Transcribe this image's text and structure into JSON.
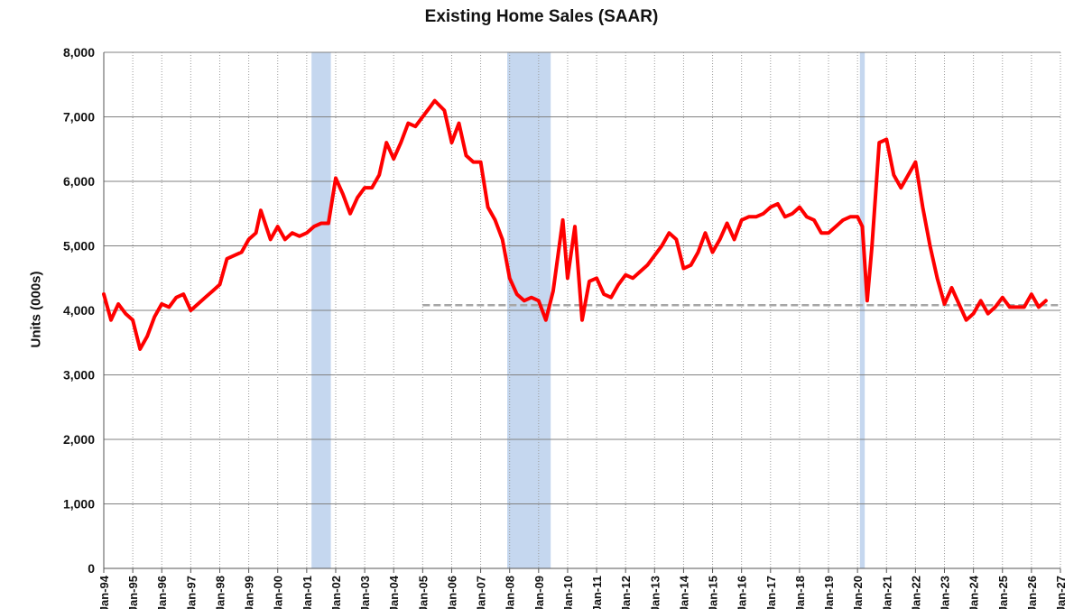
{
  "chart_data": {
    "type": "line",
    "title": "Existing Home Sales (SAAR)",
    "ylabel": "Units (000s)",
    "xlabel": "",
    "ylim": [
      0,
      8000
    ],
    "xlim": [
      "Jan-94",
      "Jan-27"
    ],
    "grid": true,
    "y_ticks": [
      "0",
      "1,000",
      "2,000",
      "3,000",
      "4,000",
      "5,000",
      "6,000",
      "7,000",
      "8,000"
    ],
    "x_ticks": [
      "Jan-94",
      "Jan-95",
      "Jan-96",
      "Jan-97",
      "Jan-98",
      "Jan-99",
      "Jan-00",
      "Jan-01",
      "Jan-02",
      "Jan-03",
      "Jan-04",
      "Jan-05",
      "Jan-06",
      "Jan-07",
      "Jan-08",
      "Jan-09",
      "Jan-10",
      "Jan-11",
      "Jan-12",
      "Jan-13",
      "Jan-14",
      "Jan-15",
      "Jan-16",
      "Jan-17",
      "Jan-18",
      "Jan-19",
      "Jan-20",
      "Jan-21",
      "Jan-22",
      "Jan-23",
      "Jan-24",
      "Jan-25",
      "Jan-26",
      "Jan-27"
    ],
    "recession_bands": [
      {
        "start": "Mar-01",
        "end": "Nov-01"
      },
      {
        "start": "Dec-07",
        "end": "Jun-09"
      },
      {
        "start": "Feb-20",
        "end": "Apr-20"
      }
    ],
    "reference_line": {
      "value": 4080,
      "start": "Jan-05",
      "end": "Jan-27",
      "style": "dashed"
    },
    "colors": {
      "series": "#ff0000",
      "recession": "#c5d7ef",
      "reference": "#a6a6a6",
      "grid": "#808080"
    },
    "series": [
      {
        "x": [
          "Jan-94",
          "Apr-94",
          "Jul-94",
          "Oct-94",
          "Jan-95",
          "Apr-95",
          "Jul-95",
          "Oct-95",
          "Jan-96",
          "Apr-96",
          "Jul-96",
          "Oct-96",
          "Jan-97",
          "Apr-97",
          "Jul-97",
          "Oct-97",
          "Jan-98",
          "Apr-98",
          "Jul-98",
          "Oct-98",
          "Jan-99",
          "Apr-99",
          "Jun-99",
          "Oct-99",
          "Jan-00",
          "Apr-00",
          "Jul-00",
          "Oct-00",
          "Jan-01",
          "Apr-01",
          "Jul-01",
          "Oct-01",
          "Jan-02",
          "Apr-02",
          "Jul-02",
          "Oct-02",
          "Jan-03",
          "Apr-03",
          "Jul-03",
          "Oct-03",
          "Jan-04",
          "Apr-04",
          "Jul-04",
          "Oct-04",
          "Jan-05",
          "Apr-05",
          "Jun-05",
          "Oct-05",
          "Jan-06",
          "Apr-06",
          "Jul-06",
          "Oct-06",
          "Jan-07",
          "Apr-07",
          "Jul-07",
          "Oct-07",
          "Jan-08",
          "Apr-08",
          "Jul-08",
          "Oct-08",
          "Jan-09",
          "Apr-09",
          "Jul-09",
          "Nov-09",
          "Jan-10",
          "Apr-10",
          "Jul-10",
          "Oct-10",
          "Jan-11",
          "Apr-11",
          "Jul-11",
          "Oct-11",
          "Jan-12",
          "Apr-12",
          "Jul-12",
          "Oct-12",
          "Jan-13",
          "Apr-13",
          "Jul-13",
          "Oct-13",
          "Jan-14",
          "Apr-14",
          "Jul-14",
          "Oct-14",
          "Jan-15",
          "Apr-15",
          "Jul-15",
          "Oct-15",
          "Jan-16",
          "Apr-16",
          "Jul-16",
          "Oct-16",
          "Jan-17",
          "Apr-17",
          "Jul-17",
          "Oct-17",
          "Jan-18",
          "Apr-18",
          "Jul-18",
          "Oct-18",
          "Jan-19",
          "Apr-19",
          "Jul-19",
          "Oct-19",
          "Jan-20",
          "Mar-20",
          "May-20",
          "Jul-20",
          "Oct-20",
          "Jan-21",
          "Apr-21",
          "Jul-21",
          "Oct-21",
          "Jan-22",
          "Apr-22",
          "Jul-22",
          "Oct-22",
          "Jan-23",
          "Apr-23",
          "Jul-23",
          "Oct-23",
          "Jan-24",
          "Apr-24",
          "Jul-24",
          "Oct-24",
          "Jan-25",
          "Apr-25",
          "Jul-25",
          "Oct-25",
          "Jan-26",
          "Apr-26",
          "Jul-26"
        ],
        "y": [
          4250,
          3850,
          4100,
          3950,
          3850,
          3400,
          3600,
          3900,
          4100,
          4050,
          4200,
          4250,
          4000,
          4100,
          4200,
          4300,
          4400,
          4800,
          4850,
          4900,
          5100,
          5200,
          5550,
          5100,
          5300,
          5100,
          5200,
          5150,
          5200,
          5300,
          5350,
          5350,
          6050,
          5800,
          5500,
          5750,
          5900,
          5900,
          6100,
          6600,
          6350,
          6600,
          6900,
          6850,
          7000,
          7150,
          7250,
          7100,
          6600,
          6900,
          6400,
          6300,
          6300,
          5600,
          5400,
          5100,
          4500,
          4250,
          4150,
          4200,
          4150,
          3850,
          4300,
          5400,
          4500,
          5300,
          3850,
          4450,
          4500,
          4250,
          4200,
          4400,
          4550,
          4500,
          4600,
          4700,
          4850,
          5000,
          5200,
          5100,
          4650,
          4700,
          4900,
          5200,
          4900,
          5100,
          5350,
          5100,
          5400,
          5450,
          5450,
          5500,
          5600,
          5650,
          5450,
          5500,
          5600,
          5450,
          5400,
          5200,
          5200,
          5300,
          5400,
          5450,
          5450,
          5300,
          4150,
          5000,
          6600,
          6650,
          6100,
          5900,
          6100,
          6300,
          5600,
          5000,
          4500,
          4100,
          4350,
          4100,
          3850,
          3950,
          4150,
          3950,
          4050,
          4200,
          4050,
          4050,
          4050,
          4250,
          4050,
          4150
        ]
      }
    ]
  }
}
